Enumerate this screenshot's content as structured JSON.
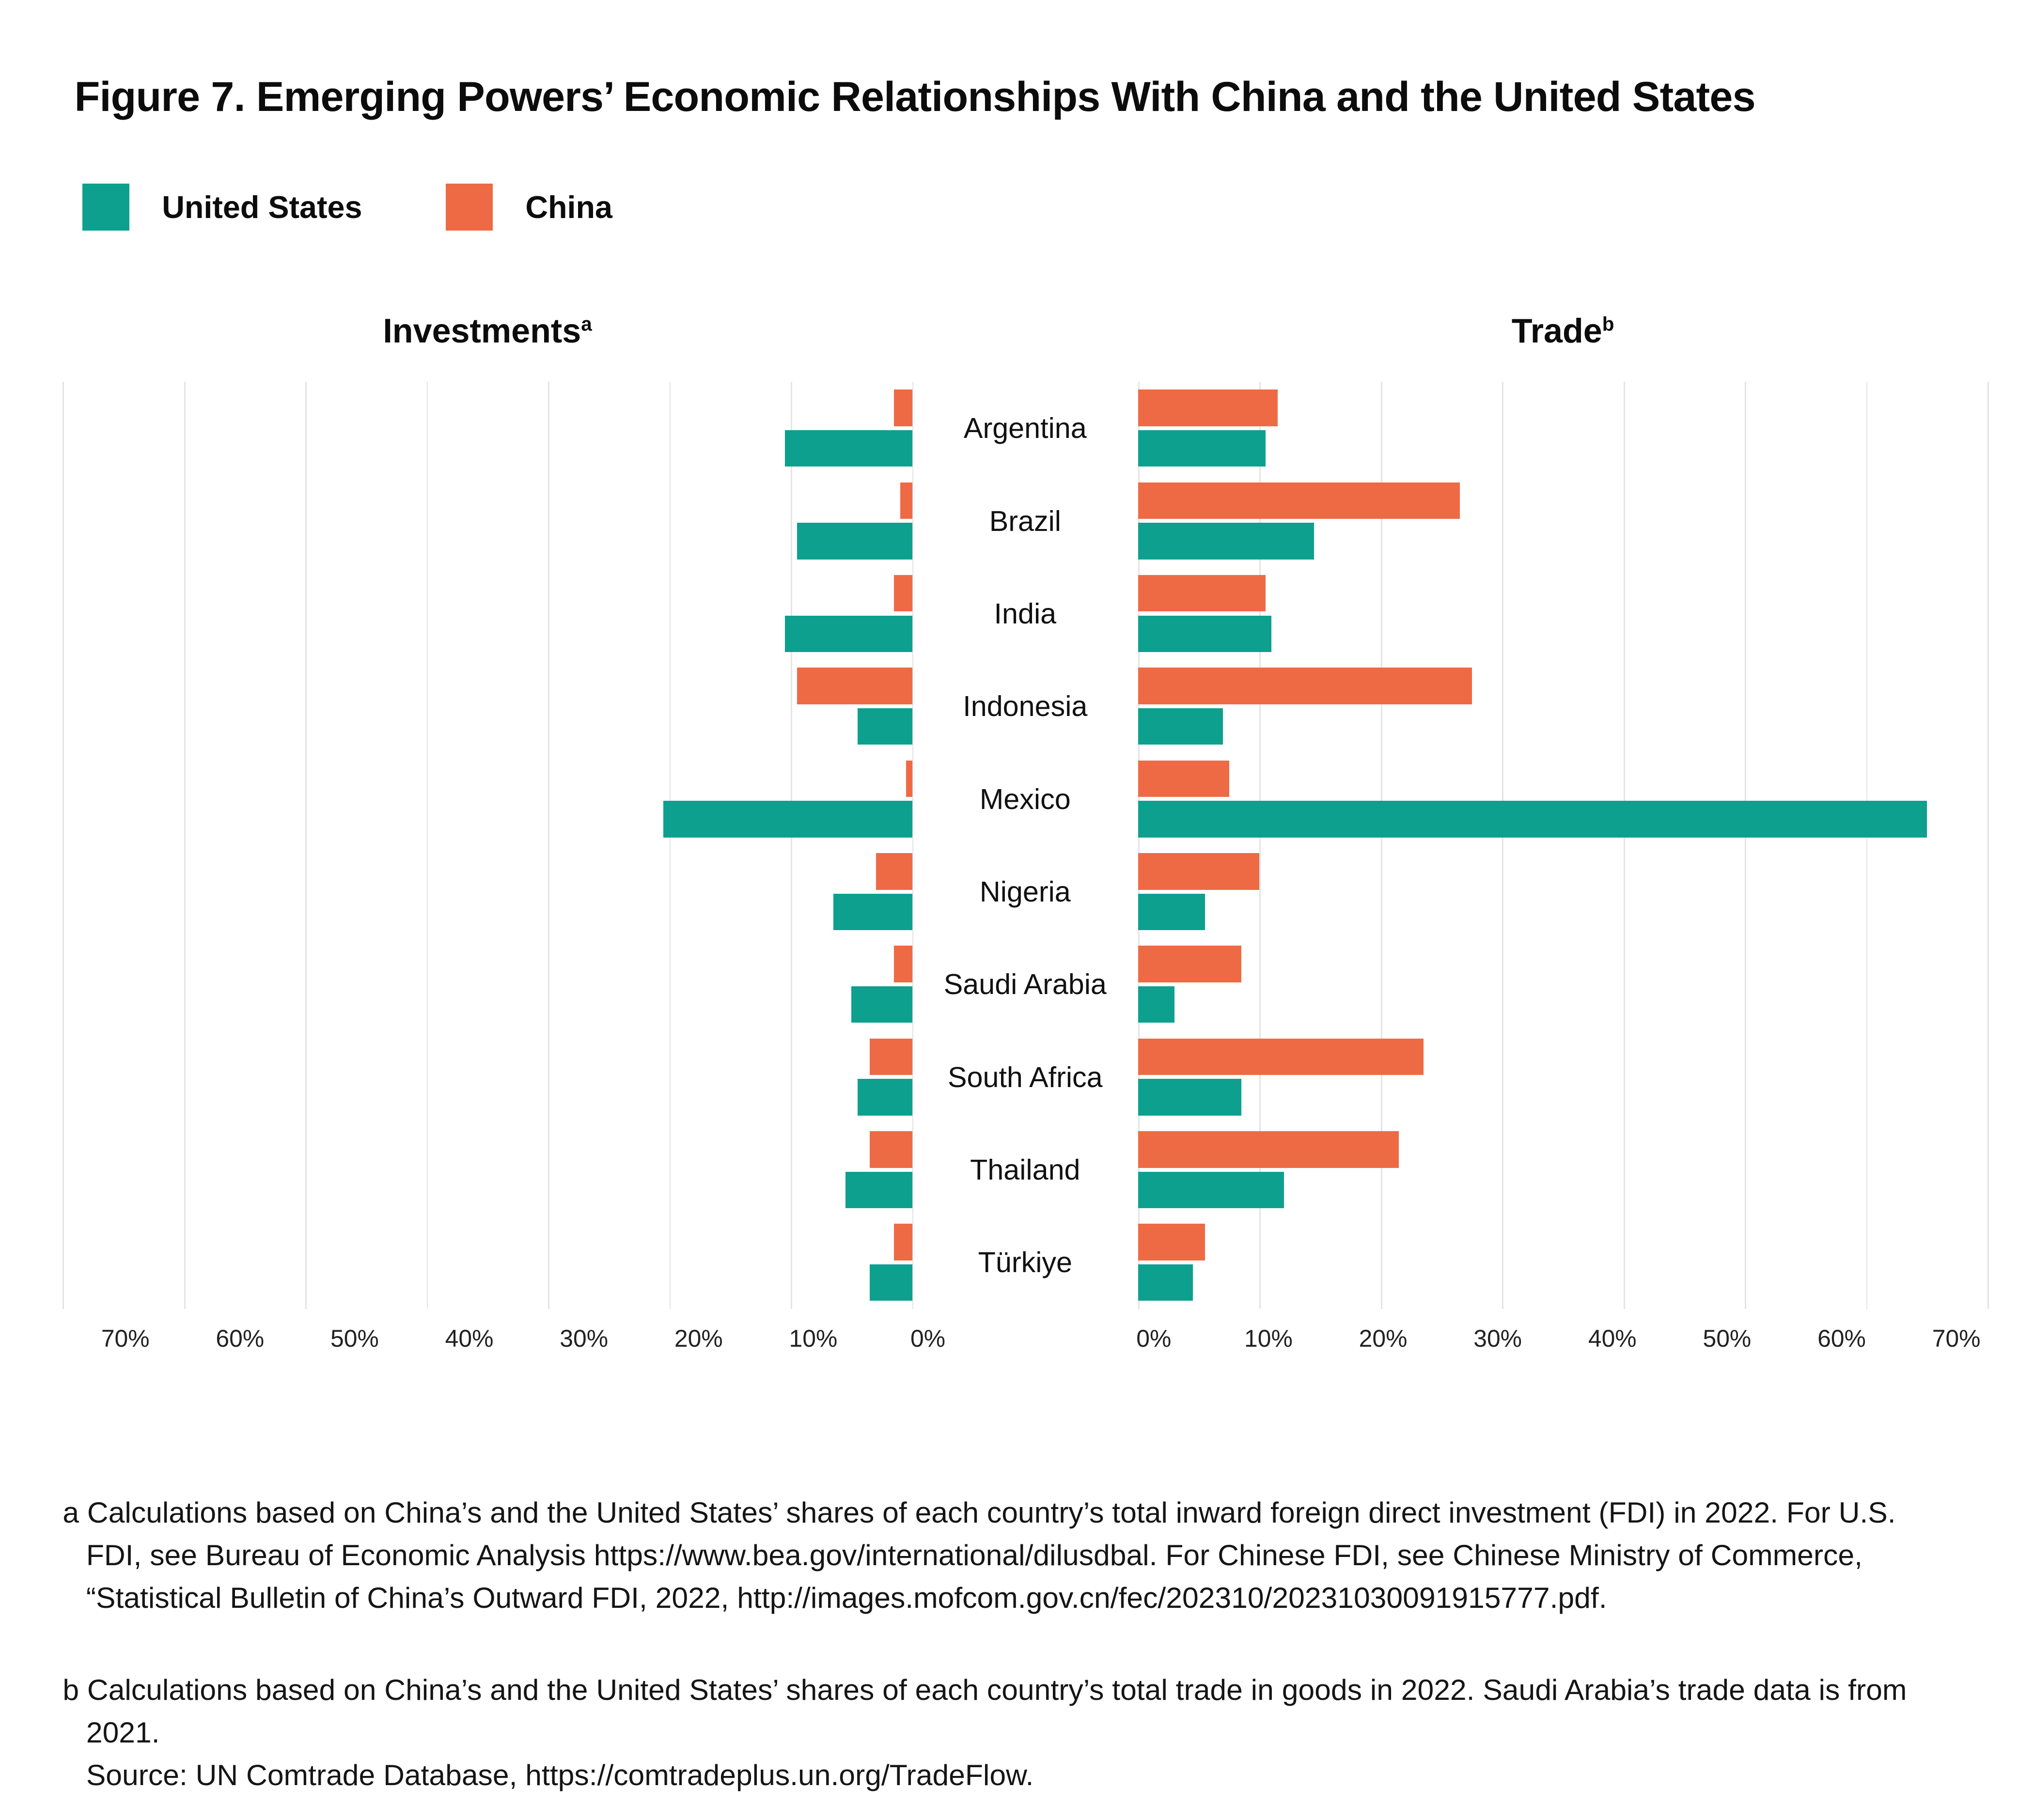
{
  "figure": {
    "title": "Figure 7. Emerging Powers’ Economic Relationships With China and the United States"
  },
  "legend": {
    "us": {
      "label": "United States",
      "color": "#0DA08E"
    },
    "china": {
      "label": "China",
      "color": "#EE6A45"
    }
  },
  "panels": {
    "investments": {
      "title": "Investments",
      "sup": "a"
    },
    "trade": {
      "title": "Trade",
      "sup": "b"
    }
  },
  "axis": {
    "left_ticks": [
      "70%",
      "60%",
      "50%",
      "40%",
      "30%",
      "20%",
      "10%",
      "0%"
    ],
    "right_ticks": [
      "0%",
      "10%",
      "20%",
      "30%",
      "40%",
      "50%",
      "60%",
      "70%"
    ],
    "max_percent": 70
  },
  "chart_data": {
    "type": "bar",
    "layout": "diverging-horizontal-grouped",
    "unit": "%",
    "xlim": [
      0,
      70
    ],
    "gridlines": true,
    "legend_position": "top-left",
    "categories": [
      "Argentina",
      "Brazil",
      "India",
      "Indonesia",
      "Mexico",
      "Nigeria",
      "Saudi Arabia",
      "South Africa",
      "Thailand",
      "Türkiye"
    ],
    "series": [
      {
        "name": "China",
        "panel": "investments",
        "values": [
          1.5,
          1,
          1.5,
          9.5,
          0.5,
          3,
          1.5,
          3.5,
          3.5,
          1.5
        ]
      },
      {
        "name": "United States",
        "panel": "investments",
        "values": [
          10.5,
          9.5,
          10.5,
          4.5,
          20.5,
          6.5,
          5,
          4.5,
          5.5,
          3.5
        ]
      },
      {
        "name": "China",
        "panel": "trade",
        "values": [
          11.5,
          26.5,
          10.5,
          27.5,
          7.5,
          10,
          8.5,
          23.5,
          21.5,
          5.5
        ]
      },
      {
        "name": "United States",
        "panel": "trade",
        "values": [
          10.5,
          14.5,
          11,
          7,
          65,
          5.5,
          3,
          8.5,
          12,
          4.5
        ]
      }
    ]
  },
  "footnotes": [
    {
      "marker": "a",
      "text": "Calculations based on China’s and the United States’ shares of each country’s total inward foreign direct investment (FDI) in 2022. For U.S. FDI, see Bureau of Economic Analysis https://www.bea.gov/international/dilusdbal. For Chinese FDI, see Chinese Ministry of Commerce, “Statistical Bulletin of China’s Outward FDI, 2022, http://images.mofcom.gov.cn/fec/202310/20231030091915777.pdf."
    },
    {
      "marker": "b",
      "text": "Calculations based on China’s and the United States’ shares of each country’s total trade in goods in 2022. Saudi Arabia’s trade data is from 2021.",
      "source": "Source: UN Comtrade Database, https://comtradeplus.un.org/TradeFlow."
    }
  ]
}
